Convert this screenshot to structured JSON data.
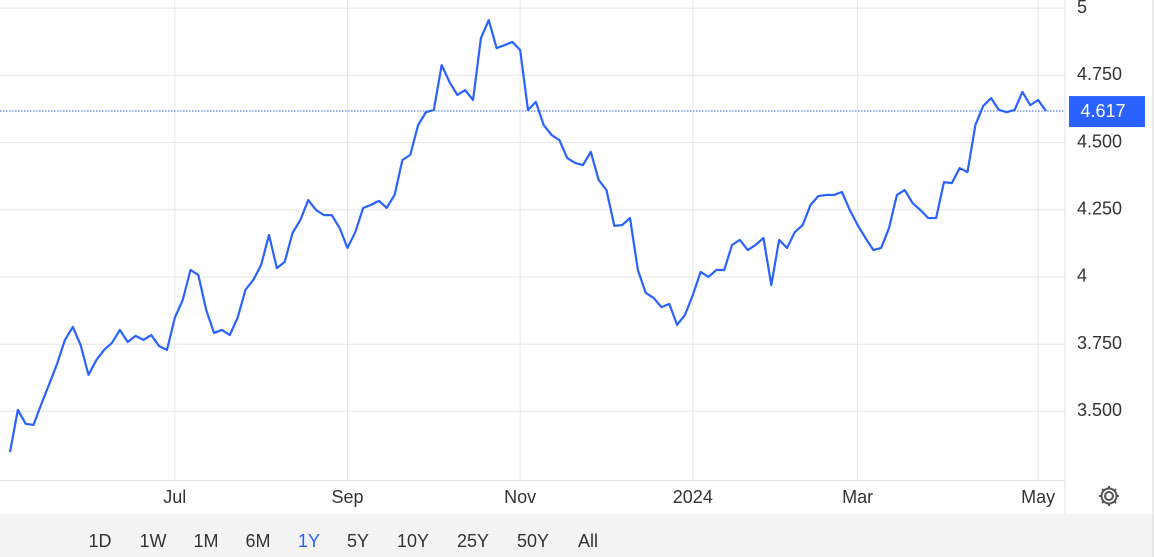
{
  "chart_data": {
    "type": "line",
    "categories": [
      null,
      null,
      null,
      null,
      null,
      null,
      null,
      null,
      null,
      null,
      null,
      null,
      null,
      null,
      null,
      null,
      null,
      null,
      null,
      null,
      null,
      "Jul",
      null,
      null,
      null,
      null,
      null,
      null,
      null,
      null,
      null,
      null,
      null,
      null,
      null,
      null,
      null,
      null,
      null,
      null,
      null,
      null,
      null,
      "Sep",
      null,
      null,
      null,
      null,
      null,
      null,
      null,
      null,
      null,
      null,
      null,
      null,
      null,
      null,
      null,
      null,
      null,
      null,
      null,
      null,
      null,
      "Nov",
      null,
      null,
      null,
      null,
      null,
      null,
      null,
      null,
      null,
      null,
      null,
      null,
      null,
      null,
      null,
      null,
      null,
      null,
      null,
      null,
      null,
      "2024",
      null,
      null,
      null,
      null,
      null,
      null,
      null,
      null,
      null,
      null,
      null,
      null,
      null,
      null,
      null,
      null,
      null,
      null,
      null,
      null,
      "Mar",
      null,
      null,
      null,
      null,
      null,
      null,
      null,
      null,
      null,
      null,
      null,
      null,
      null,
      null,
      null,
      null,
      null,
      null,
      null,
      null,
      null,
      null,
      "May",
      null
    ],
    "series": [
      {
        "color": "#2962ff",
        "values": [
          3.349,
          3.506,
          3.454,
          3.45,
          3.528,
          3.602,
          3.677,
          3.766,
          3.814,
          3.747,
          3.636,
          3.691,
          3.729,
          3.755,
          3.803,
          3.758,
          3.781,
          3.766,
          3.784,
          3.743,
          3.729,
          3.848,
          3.914,
          4.026,
          4.007,
          3.877,
          3.792,
          3.803,
          3.784,
          3.848,
          3.952,
          3.989,
          4.045,
          4.156,
          4.033,
          4.056,
          4.164,
          4.212,
          4.286,
          4.249,
          4.23,
          4.23,
          4.182,
          4.108,
          4.167,
          4.257,
          4.268,
          4.283,
          4.257,
          4.305,
          4.435,
          4.454,
          4.565,
          4.613,
          4.621,
          4.788,
          4.725,
          4.677,
          4.695,
          4.658,
          4.888,
          4.955,
          4.851,
          4.862,
          4.874,
          4.844,
          4.621,
          4.651,
          4.565,
          4.528,
          4.509,
          4.442,
          4.424,
          4.416,
          4.465,
          4.361,
          4.323,
          4.19,
          4.193,
          4.219,
          4.026,
          3.941,
          3.922,
          3.888,
          3.9,
          3.822,
          3.859,
          3.933,
          4.019,
          4.0,
          4.026,
          4.026,
          4.119,
          4.138,
          4.1,
          4.119,
          4.145,
          3.97,
          4.138,
          4.108,
          4.167,
          4.193,
          4.268,
          4.301,
          4.305,
          4.305,
          4.316,
          4.249,
          4.193,
          4.145,
          4.1,
          4.108,
          4.182,
          4.305,
          4.323,
          4.275,
          4.249,
          4.219,
          4.219,
          4.353,
          4.349,
          4.405,
          4.39,
          4.565,
          4.636,
          4.665,
          4.621,
          4.613,
          4.621,
          4.688,
          4.639,
          4.658,
          4.617
        ]
      }
    ],
    "current_value": 4.617,
    "ylim": [
      3.245,
      5.03
    ],
    "yticks": [
      {
        "value": 3.5,
        "label": "3.500"
      },
      {
        "value": 3.75,
        "label": "3.750"
      },
      4,
      {
        "value": 4.25,
        "label": "4.250"
      },
      {
        "value": 4.5,
        "label": "4.500"
      },
      {
        "value": 4.75,
        "label": "4.750"
      },
      5
    ],
    "grid": true
  },
  "range_buttons": [
    "1D",
    "1W",
    "1M",
    "6M",
    "1Y",
    "5Y",
    "10Y",
    "25Y",
    "50Y",
    "All"
  ],
  "active_range": "1Y"
}
